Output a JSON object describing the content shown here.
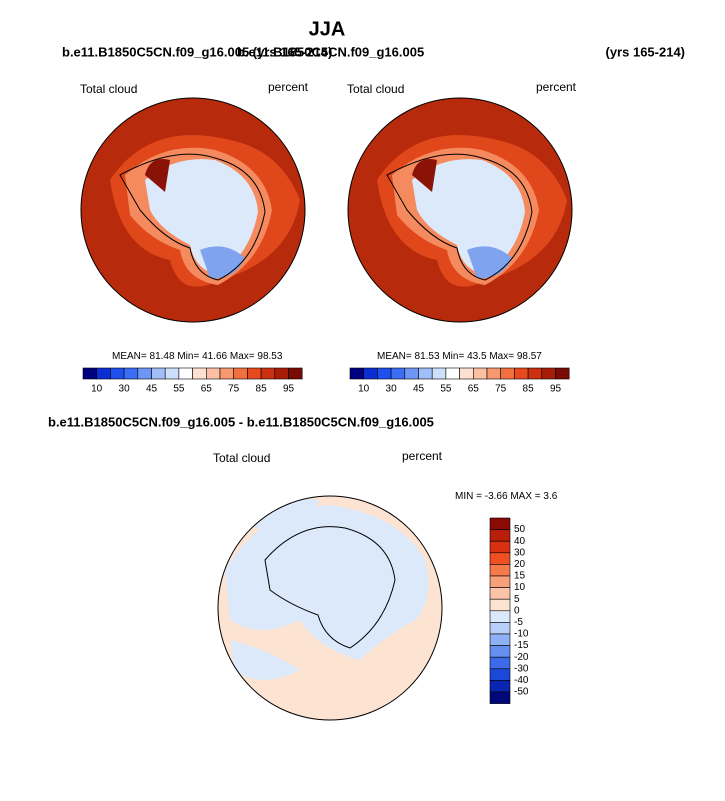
{
  "header": {
    "title": "JJA",
    "left_case": "b.e11.B1850C5CN.f09_g16.005 (yrs 165-214)",
    "right_case": "b.e11.B1850C5CN.f09_g16.005",
    "right_years": "(yrs 165-214)"
  },
  "panels": [
    {
      "variable": "Total cloud",
      "units": "percent",
      "mean_label": "MEAN=",
      "mean": 81.48,
      "min_label": "Min=",
      "min": 41.66,
      "max_label": "Max=",
      "max": 98.53
    },
    {
      "variable": "Total cloud",
      "units": "percent",
      "mean_label": "MEAN=",
      "mean": 81.53,
      "min_label": "Min=",
      "min": 43.5,
      "max_label": "Max=",
      "max": 98.57
    }
  ],
  "colorbar": {
    "labels": [
      10,
      30,
      45,
      55,
      65,
      75,
      85,
      95
    ]
  },
  "difference": {
    "title": "b.e11.B1850C5CN.f09_g16.005 - b.e11.B1850C5CN.f09_g16.005",
    "variable": "Total cloud",
    "units": "percent",
    "min_label": "MIN =",
    "min": -3.66,
    "max_label": "MAX =",
    "max": 3.6,
    "colorbar_labels": [
      50,
      40,
      30,
      20,
      15,
      10,
      5,
      0,
      -5,
      -10,
      -15,
      -20,
      -30,
      -40,
      -50
    ]
  }
}
